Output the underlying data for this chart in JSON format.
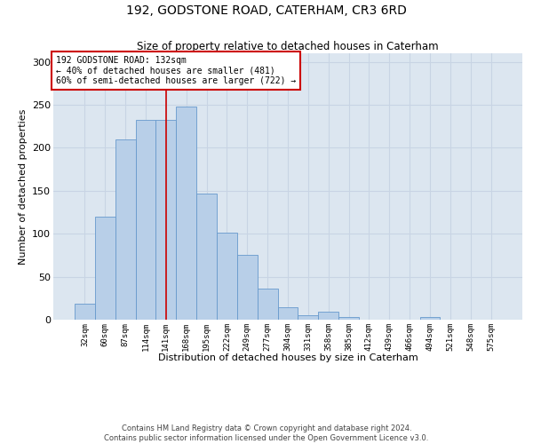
{
  "title": "192, GODSTONE ROAD, CATERHAM, CR3 6RD",
  "subtitle": "Size of property relative to detached houses in Caterham",
  "xlabel": "Distribution of detached houses by size in Caterham",
  "ylabel": "Number of detached properties",
  "categories": [
    "32sqm",
    "60sqm",
    "87sqm",
    "114sqm",
    "141sqm",
    "168sqm",
    "195sqm",
    "222sqm",
    "249sqm",
    "277sqm",
    "304sqm",
    "331sqm",
    "358sqm",
    "385sqm",
    "412sqm",
    "439sqm",
    "466sqm",
    "494sqm",
    "521sqm",
    "548sqm",
    "575sqm"
  ],
  "values": [
    19,
    120,
    210,
    232,
    232,
    248,
    147,
    101,
    75,
    36,
    14,
    5,
    9,
    3,
    0,
    0,
    0,
    3,
    0,
    0,
    0
  ],
  "bar_color": "#b8cfe8",
  "bar_edge_color": "#6699cc",
  "grid_color": "#c8d4e4",
  "background_color": "#dce6f0",
  "property_label": "192 GODSTONE ROAD: 132sqm",
  "annotation_line1": "← 40% of detached houses are smaller (481)",
  "annotation_line2": "60% of semi-detached houses are larger (722) →",
  "vline_color": "#cc0000",
  "annotation_box_edge_color": "#cc0000",
  "annotation_box_face_color": "#ffffff",
  "footer1": "Contains HM Land Registry data © Crown copyright and database right 2024.",
  "footer2": "Contains public sector information licensed under the Open Government Licence v3.0.",
  "ylim": [
    0,
    310
  ],
  "figsize": [
    6.0,
    5.0
  ],
  "dpi": 100
}
